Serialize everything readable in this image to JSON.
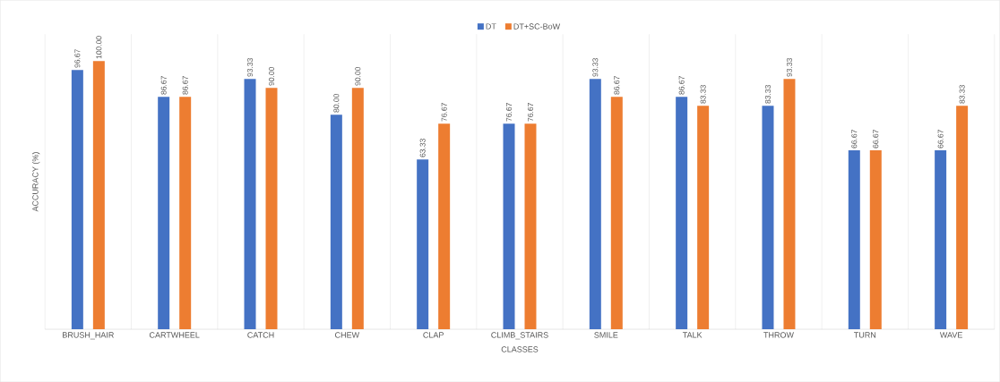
{
  "chart_data": {
    "type": "bar",
    "xlabel": "CLASSES",
    "ylabel": "ACCURACY (%)",
    "categories": [
      "BRUSH_HAIR",
      "CARTWHEEL",
      "CATCH",
      "CHEW",
      "CLAP",
      "CLIMB_STAIRS",
      "SMILE",
      "TALK",
      "THROW",
      "TURN",
      "WAVE"
    ],
    "series": [
      {
        "name": "DT",
        "color": "#4472c4",
        "values": [
          96.67,
          86.67,
          93.33,
          80.0,
          63.33,
          76.67,
          93.33,
          86.67,
          83.33,
          66.67,
          66.67
        ],
        "value_labels": [
          "96.67",
          "86.67",
          "93.33",
          "80.00",
          "63.33",
          "76.67",
          "93.33",
          "86.67",
          "83.33",
          "66.67",
          "66.67"
        ]
      },
      {
        "name": "DT+SC-BoW",
        "color": "#ed7d31",
        "values": [
          100.0,
          86.67,
          90.0,
          90.0,
          76.67,
          76.67,
          86.67,
          83.33,
          93.33,
          66.67,
          83.33
        ],
        "value_labels": [
          "100.00",
          "86.67",
          "90.00",
          "90.00",
          "76.67",
          "76.67",
          "86.67",
          "83.33",
          "93.33",
          "66.67",
          "83.33"
        ]
      }
    ],
    "ylim": [
      0,
      100
    ],
    "tick_labels": "x",
    "grid": "x",
    "legend": "top"
  }
}
